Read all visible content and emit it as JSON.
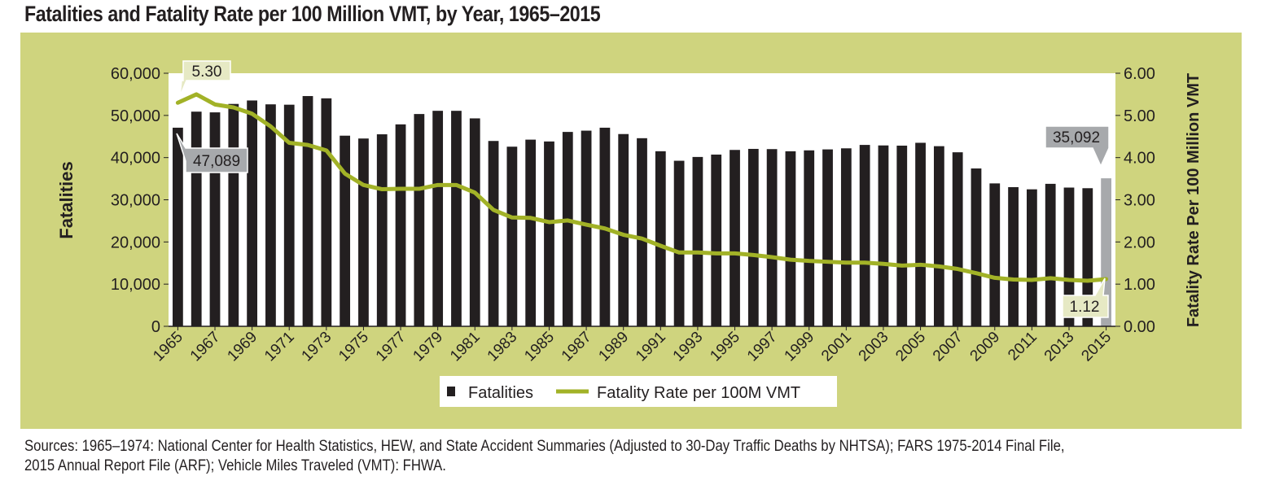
{
  "title": "Fatalities and Fatality Rate per 100 Million VMT, by Year, 1965–2015",
  "source": [
    "Sources: 1965–1974: National Center for Health Statistics, HEW, and State Accident Summaries (Adjusted to 30-Day Traffic Deaths by NHTSA); FARS 1975-2014 Final File,",
    "2015 Annual Report File (ARF); Vehicle Miles Traveled (VMT): FHWA."
  ],
  "colors": {
    "background": "#cfd47e",
    "bar": "#231f20",
    "bar_highlight": "#a7a9ac",
    "line": "#a2b227",
    "callout_light": "#e6e9c4",
    "callout_gray": "#a7a9ac"
  },
  "chart_data": {
    "type": "bar",
    "x": [
      1965,
      1966,
      1967,
      1968,
      1969,
      1970,
      1971,
      1972,
      1973,
      1974,
      1975,
      1976,
      1977,
      1978,
      1979,
      1980,
      1981,
      1982,
      1983,
      1984,
      1985,
      1986,
      1987,
      1988,
      1989,
      1990,
      1991,
      1992,
      1993,
      1994,
      1995,
      1996,
      1997,
      1998,
      1999,
      2000,
      2001,
      2002,
      2003,
      2004,
      2005,
      2006,
      2007,
      2008,
      2009,
      2010,
      2011,
      2012,
      2013,
      2014,
      2015
    ],
    "x_tick_labels": [
      "1965",
      "1967",
      "1969",
      "1971",
      "1973",
      "1975",
      "1977",
      "1979",
      "1981",
      "1983",
      "1985",
      "1987",
      "1989",
      "1991",
      "1993",
      "1995",
      "1997",
      "1999",
      "2001",
      "2003",
      "2005",
      "2007",
      "2009",
      "2011",
      "2013",
      "2015"
    ],
    "series": [
      {
        "name": "Fatalities",
        "type": "bar",
        "axis": "left",
        "values": [
          47089,
          50894,
          50724,
          52725,
          53543,
          52627,
          52542,
          54589,
          54052,
          45196,
          44525,
          45523,
          47878,
          50331,
          51093,
          51091,
          49301,
          43945,
          42589,
          44257,
          43825,
          46087,
          46390,
          47087,
          45582,
          44599,
          41508,
          39250,
          40150,
          40716,
          41817,
          42065,
          42013,
          41501,
          41717,
          41945,
          42196,
          43005,
          42884,
          42836,
          43510,
          42708,
          41259,
          37423,
          33883,
          32999,
          32479,
          33782,
          32893,
          32744,
          35092
        ]
      },
      {
        "name": "Fatality Rate per 100M VMT",
        "type": "line",
        "axis": "right",
        "values": [
          5.3,
          5.5,
          5.26,
          5.19,
          5.04,
          4.74,
          4.35,
          4.3,
          4.17,
          3.62,
          3.35,
          3.25,
          3.26,
          3.26,
          3.35,
          3.35,
          3.17,
          2.76,
          2.58,
          2.57,
          2.47,
          2.51,
          2.41,
          2.32,
          2.17,
          2.08,
          1.91,
          1.75,
          1.75,
          1.73,
          1.73,
          1.69,
          1.64,
          1.58,
          1.55,
          1.53,
          1.51,
          1.51,
          1.48,
          1.44,
          1.46,
          1.42,
          1.36,
          1.26,
          1.15,
          1.11,
          1.1,
          1.14,
          1.1,
          1.08,
          1.12
        ]
      }
    ],
    "ylabel": "Fatalities",
    "ylabel_right": "Fatality Rate Per 100 Million VMT",
    "ylim": [
      0,
      60000
    ],
    "ylim_right": [
      0,
      6
    ],
    "y_ticks": [
      "0",
      "10,000",
      "20,000",
      "30,000",
      "40,000",
      "50,000",
      "60,000"
    ],
    "y_ticks_right": [
      "0.00",
      "1.00",
      "2.00",
      "3.00",
      "4.00",
      "5.00",
      "6.00"
    ],
    "legend": {
      "position": "bottom",
      "items": [
        "Fatalities",
        "Fatality Rate per 100M VMT"
      ]
    },
    "annotations": [
      "5.30",
      "47,089",
      "35,092",
      "1.12"
    ],
    "highlight_year": 2015
  }
}
